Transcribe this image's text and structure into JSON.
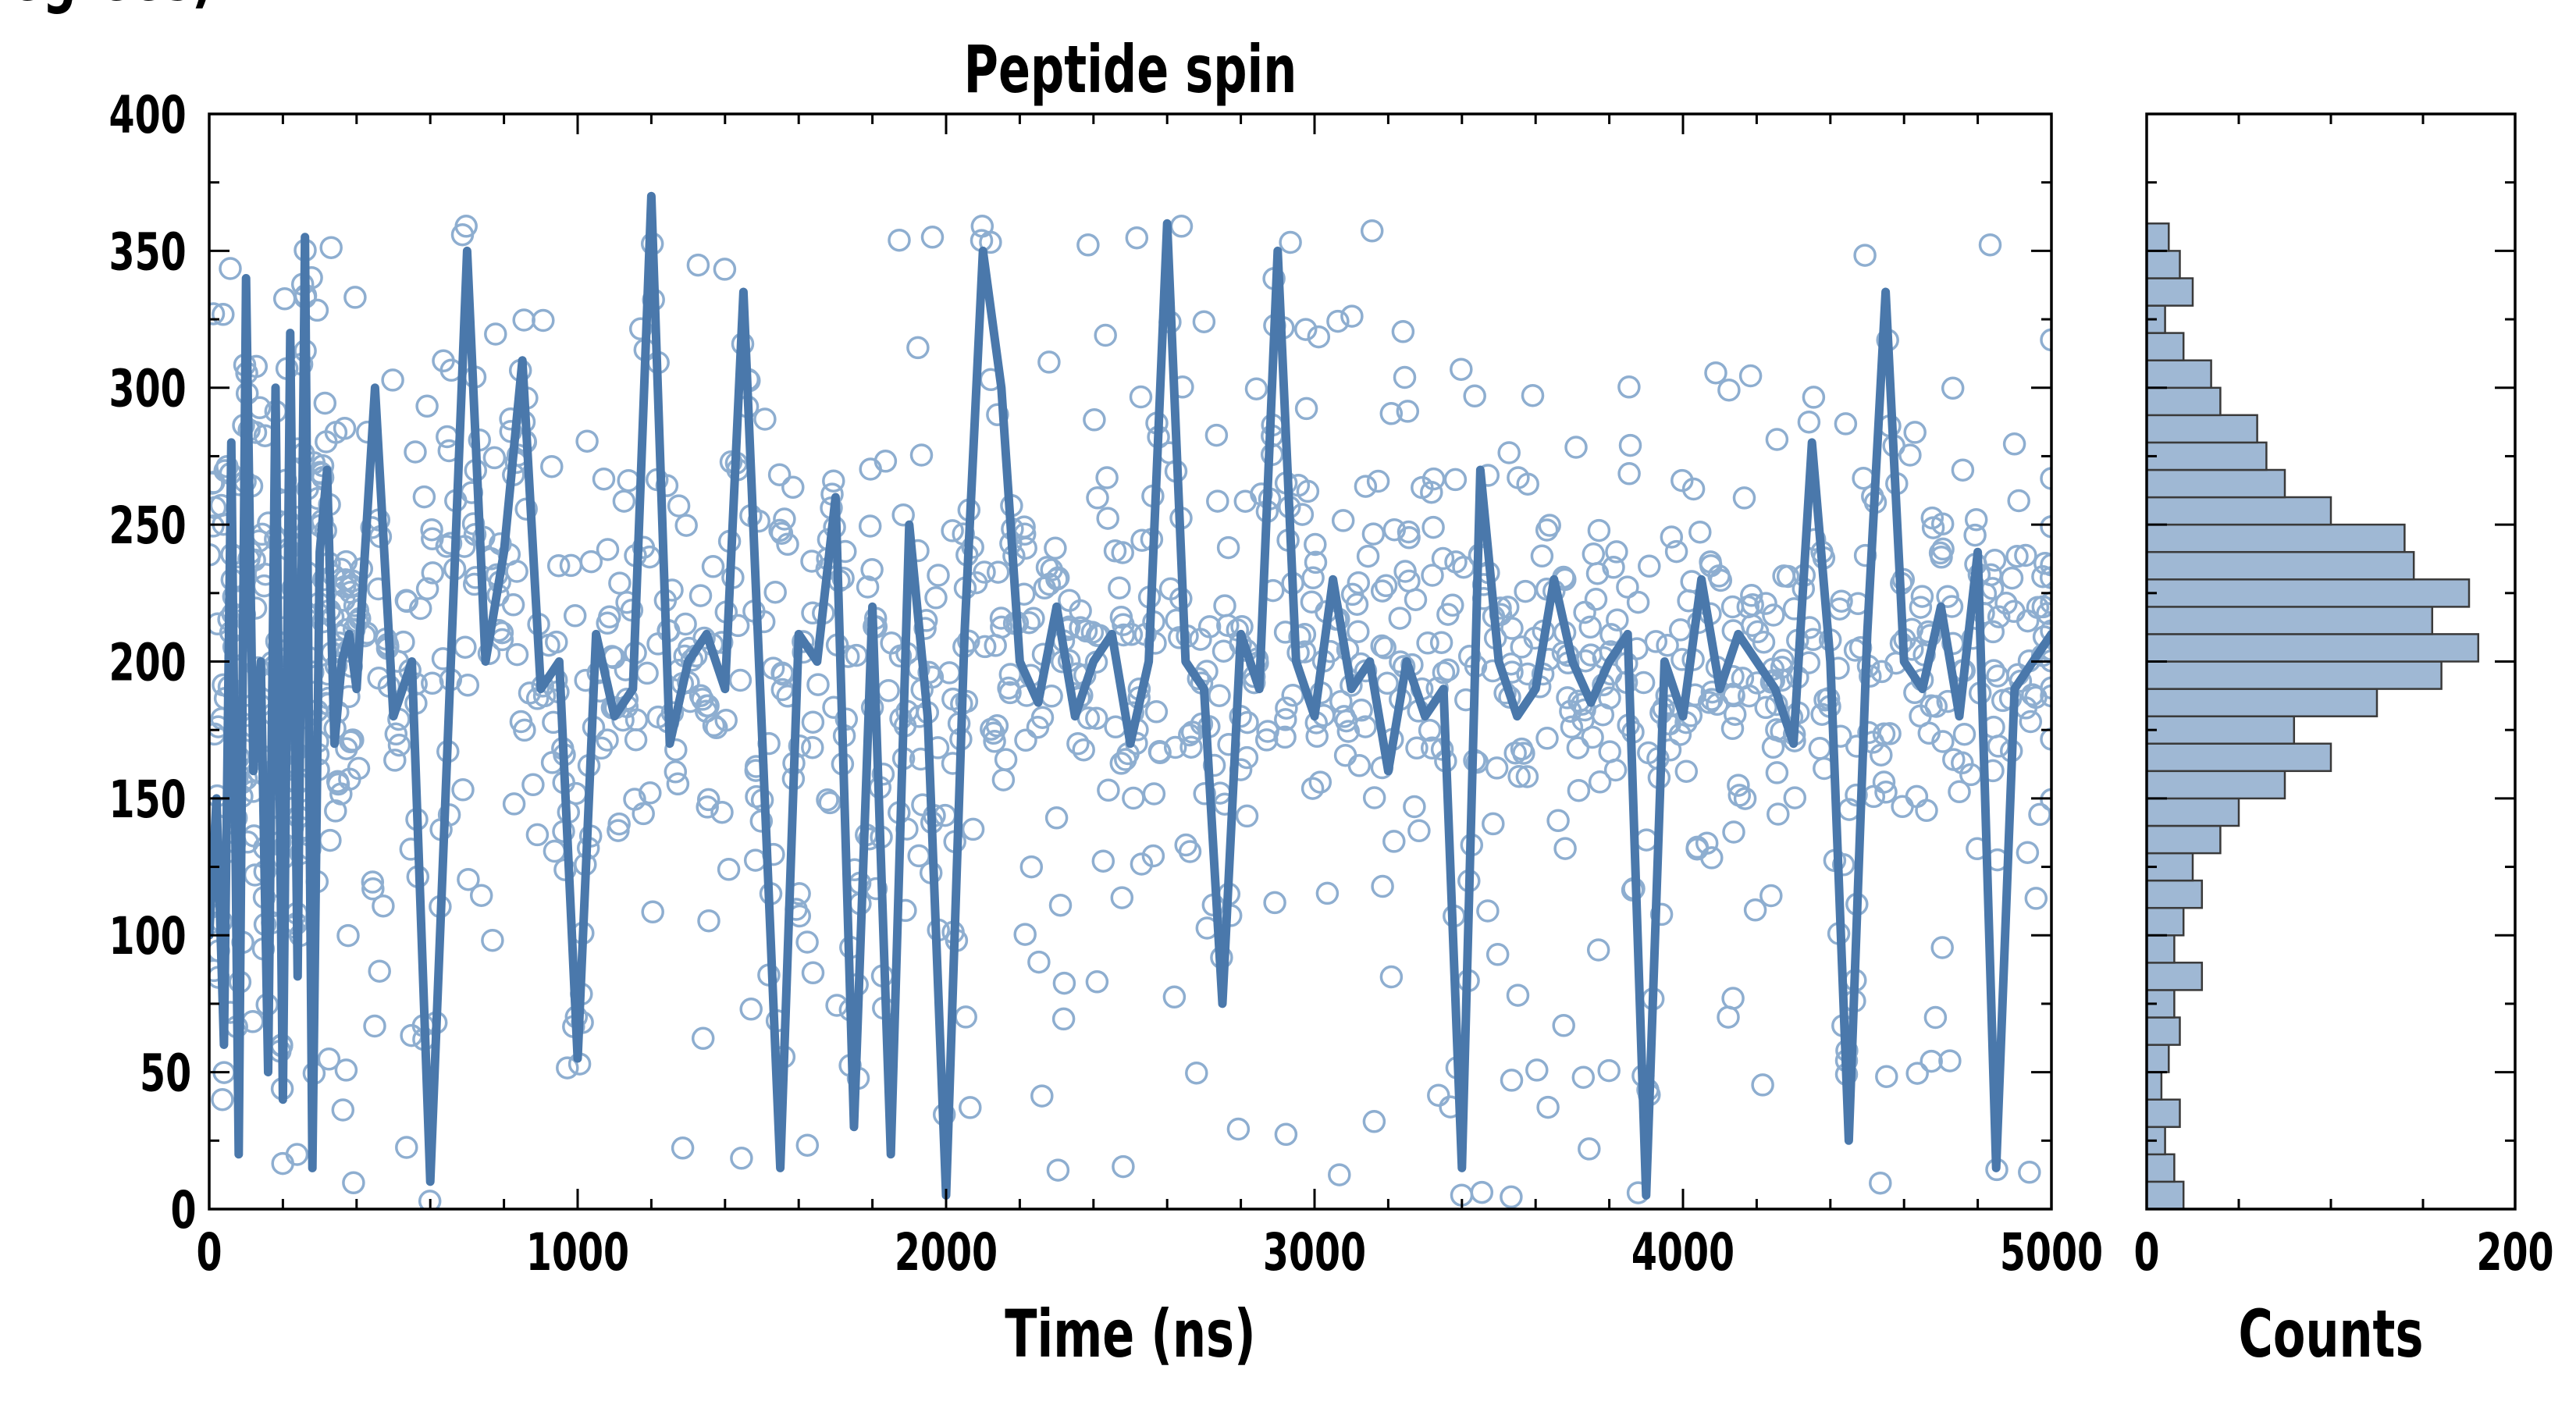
{
  "chart_data": [
    {
      "type": "line",
      "title": "Peptide spin",
      "xlabel": "Time (ns)",
      "ylabel": "Angle (degrees)",
      "xlim": [
        0,
        5000
      ],
      "ylim": [
        0,
        400
      ],
      "xticks": [
        0,
        1000,
        2000,
        3000,
        4000,
        5000
      ],
      "yticks": [
        0,
        50,
        100,
        150,
        200,
        250,
        300,
        350,
        400
      ],
      "grid": false,
      "legend": "none",
      "markers": "open circles (raw samples) with overlaid smoothed line",
      "series_color": "#4a78ab",
      "point_color": "#8eaed0",
      "series": [
        {
          "x": [
            0,
            20,
            40,
            60,
            80,
            100,
            120,
            140,
            160,
            180,
            200,
            220,
            240,
            260,
            280,
            300,
            320,
            340,
            360,
            380,
            400,
            450,
            500,
            550,
            600,
            650,
            700,
            750,
            800,
            850,
            900,
            950,
            1000,
            1050,
            1100,
            1150,
            1200,
            1250,
            1300,
            1350,
            1400,
            1450,
            1500,
            1550,
            1600,
            1650,
            1700,
            1750,
            1800,
            1850,
            1900,
            1950,
            2000,
            2050,
            2100,
            2150,
            2200,
            2250,
            2300,
            2350,
            2400,
            2450,
            2500,
            2550,
            2600,
            2650,
            2700,
            2750,
            2800,
            2850,
            2900,
            2950,
            3000,
            3050,
            3100,
            3150,
            3200,
            3250,
            3300,
            3350,
            3400,
            3450,
            3500,
            3550,
            3600,
            3650,
            3700,
            3750,
            3800,
            3850,
            3900,
            3950,
            4000,
            4050,
            4100,
            4150,
            4200,
            4250,
            4300,
            4350,
            4400,
            4450,
            4500,
            4550,
            4600,
            4650,
            4700,
            4750,
            4800,
            4850,
            4900,
            4950,
            5000
          ],
          "y": [
            100,
            150,
            60,
            280,
            20,
            340,
            160,
            200,
            50,
            300,
            40,
            320,
            85,
            355,
            15,
            240,
            270,
            170,
            200,
            210,
            190,
            300,
            180,
            200,
            10,
            180,
            350,
            200,
            240,
            310,
            190,
            200,
            55,
            210,
            180,
            190,
            370,
            170,
            200,
            210,
            190,
            335,
            175,
            15,
            210,
            200,
            260,
            30,
            220,
            20,
            250,
            180,
            5,
            210,
            350,
            300,
            200,
            185,
            220,
            180,
            200,
            210,
            170,
            200,
            360,
            200,
            190,
            75,
            210,
            190,
            350,
            200,
            180,
            230,
            190,
            200,
            160,
            200,
            180,
            190,
            15,
            270,
            200,
            180,
            190,
            230,
            200,
            185,
            200,
            210,
            5,
            200,
            180,
            230,
            190,
            210,
            200,
            190,
            170,
            280,
            200,
            25,
            210,
            335,
            200,
            190,
            220,
            180,
            240,
            15,
            190,
            200,
            210
          ]
        }
      ]
    },
    {
      "type": "bar",
      "orientation": "horizontal",
      "xlabel": "Counts",
      "ylabel": "",
      "xlim": [
        0,
        200
      ],
      "ylim": [
        0,
        400
      ],
      "xticks": [
        0,
        200
      ],
      "bin_width": 10,
      "bar_color": "#9fb8d4",
      "bar_edge": "#3a3a3a",
      "bins_start": [
        0,
        10,
        20,
        30,
        40,
        50,
        60,
        70,
        80,
        90,
        100,
        110,
        120,
        130,
        140,
        150,
        160,
        170,
        180,
        190,
        200,
        210,
        220,
        230,
        240,
        250,
        260,
        270,
        280,
        290,
        300,
        310,
        320,
        330,
        340,
        350
      ],
      "values": [
        20,
        15,
        10,
        18,
        8,
        12,
        18,
        15,
        30,
        15,
        20,
        30,
        25,
        40,
        50,
        75,
        100,
        80,
        125,
        160,
        180,
        155,
        175,
        145,
        140,
        100,
        75,
        65,
        60,
        40,
        35,
        20,
        10,
        25,
        18,
        12
      ]
    }
  ]
}
